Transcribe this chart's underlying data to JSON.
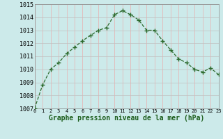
{
  "x": [
    0,
    1,
    2,
    3,
    4,
    5,
    6,
    7,
    8,
    9,
    10,
    11,
    12,
    13,
    14,
    15,
    16,
    17,
    18,
    19,
    20,
    21,
    22,
    23
  ],
  "y": [
    1007.0,
    1008.8,
    1010.0,
    1010.5,
    1011.2,
    1011.7,
    1012.2,
    1012.6,
    1013.0,
    1013.2,
    1014.2,
    1014.5,
    1014.2,
    1013.8,
    1013.0,
    1013.0,
    1012.2,
    1011.5,
    1010.8,
    1010.5,
    1010.0,
    1009.8,
    1010.1,
    1009.6
  ],
  "bg_color": "#cceaea",
  "line_color": "#2d6a2d",
  "marker_color": "#2d6a2d",
  "hgrid_color": "#c0c0c0",
  "vgrid_color": "#e8b0b0",
  "xlabel": "Graphe pression niveau de la mer (hPa)",
  "xlabel_color": "#1a5c1a",
  "ylim_min": 1007,
  "ylim_max": 1015,
  "ytick_step": 1,
  "fig_bg": "#cceaea",
  "axes_bg": "#cceaea",
  "tick_fontsize": 6,
  "xlabel_fontsize": 7
}
